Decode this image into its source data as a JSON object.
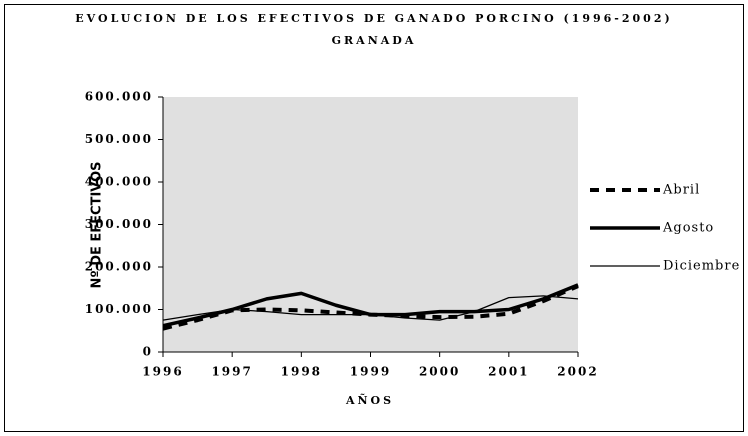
{
  "chart_data": {
    "type": "line",
    "title": "EVOLUCION DE LOS EFECTIVOS DE GANADO PORCINO (1996-2002)",
    "subtitle": "GRANADA",
    "x_label": "AÑOS",
    "y_label": "Nº DE EFECTIVOS",
    "x": [
      1996,
      1996.5,
      1997,
      1997.5,
      1998,
      1998.5,
      1999,
      1999.5,
      2000,
      2000.5,
      2001,
      2001.5,
      2002
    ],
    "series": [
      {
        "name": "Abril",
        "color": "#000000",
        "line_style": "dashed",
        "line_width": 4,
        "values": [
          55000,
          75000,
          98000,
          100000,
          98000,
          93000,
          88000,
          85000,
          82000,
          83000,
          90000,
          120000,
          155000
        ]
      },
      {
        "name": "Agosto",
        "color": "#000000",
        "line_style": "solid",
        "line_width": 3.5,
        "values": [
          62000,
          80000,
          100000,
          125000,
          138000,
          110000,
          88000,
          88000,
          95000,
          95000,
          100000,
          125000,
          158000
        ]
      },
      {
        "name": "Diciembre",
        "color": "#000000",
        "line_style": "solid",
        "line_width": 1.3,
        "values": [
          75000,
          88000,
          100000,
          95000,
          88000,
          88000,
          88000,
          80000,
          75000,
          95000,
          128000,
          132000,
          125000
        ]
      }
    ],
    "xlim": [
      1996,
      2002
    ],
    "xticks": [
      1996,
      1997,
      1998,
      1999,
      2000,
      2001,
      2002
    ],
    "ylim": [
      0,
      600000
    ],
    "yticks": [
      0,
      {
        "value": 100000,
        "label": "100.000"
      },
      {
        "value": 200000,
        "label": "200.000"
      },
      {
        "value": 300000,
        "label": "300.000"
      },
      {
        "value": 400000,
        "label": "400.000"
      },
      {
        "value": 500000,
        "label": "500.000"
      },
      {
        "value": 600000,
        "label": "600.000"
      }
    ],
    "plot_background": "#e0e0e0",
    "grid": false,
    "legend": "right"
  }
}
